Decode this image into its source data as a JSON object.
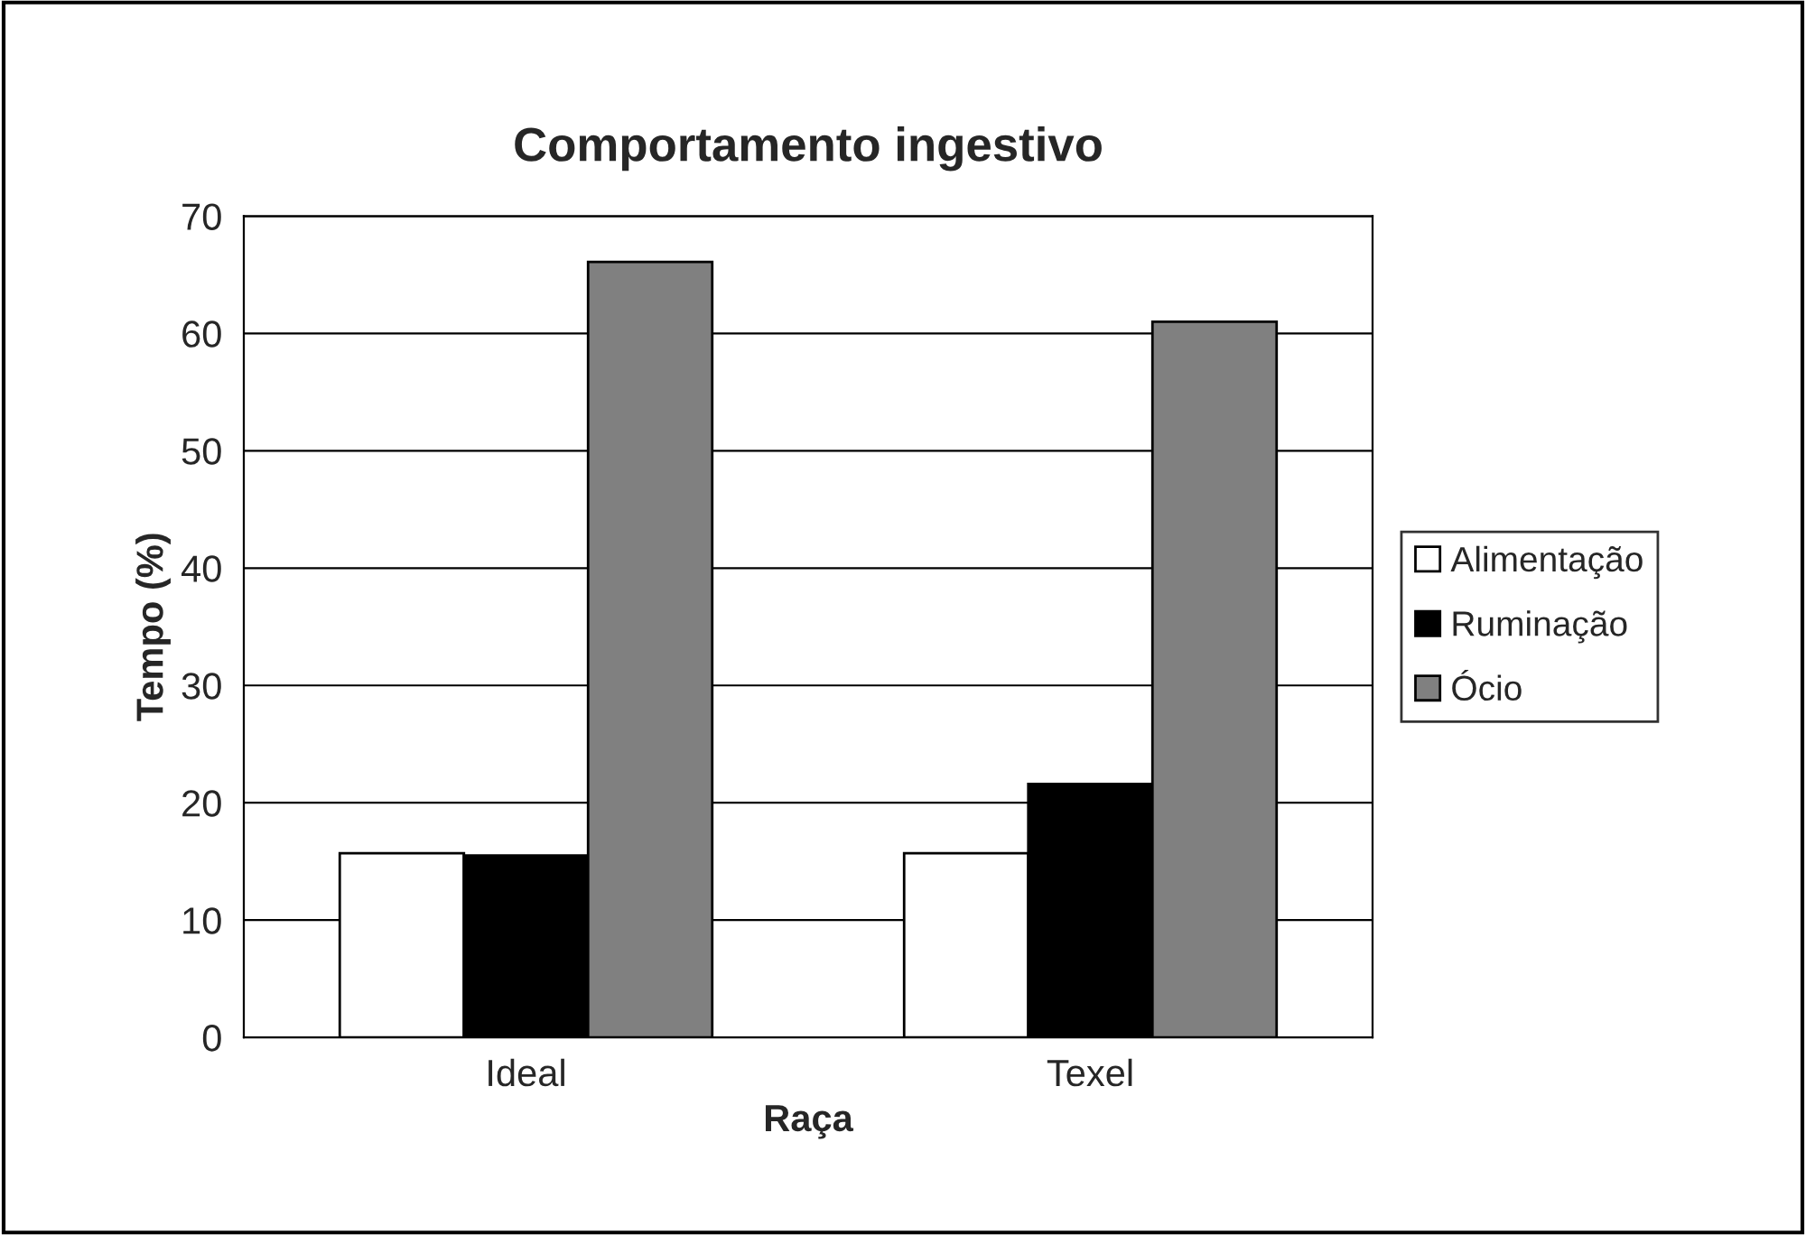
{
  "chart_data": {
    "type": "bar",
    "title": "Comportamento ingestivo",
    "xlabel": "Raça",
    "ylabel": "Tempo (%)",
    "categories": [
      "Ideal",
      "Texel"
    ],
    "series": [
      {
        "name": "Alimentação",
        "color": "#ffffff",
        "values": [
          15.7,
          15.7
        ]
      },
      {
        "name": "Ruminação",
        "color": "#000000",
        "values": [
          15.5,
          21.6
        ]
      },
      {
        "name": "Ócio",
        "color": "#808080",
        "values": [
          66.1,
          61.0
        ]
      }
    ],
    "ylim": [
      0,
      70
    ],
    "yticks": [
      0,
      10,
      20,
      30,
      40,
      50,
      60,
      70
    ],
    "grid": "y",
    "legend": "right"
  }
}
